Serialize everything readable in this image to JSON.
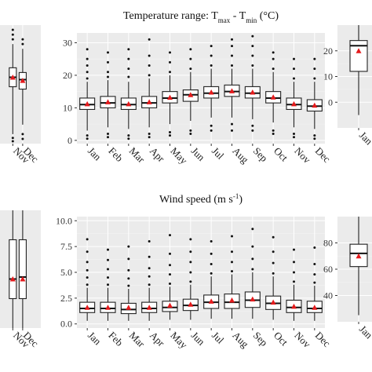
{
  "chart_data": [
    {
      "type": "box",
      "panel": "left-top",
      "title": "",
      "months": [
        "Nov",
        "Dec"
      ],
      "ylim": [
        5,
        30
      ],
      "yticks": [],
      "boxes": [
        {
          "month": "Nov",
          "min": 7,
          "q1": 17,
          "median": 19,
          "q3": 21,
          "max": 26,
          "mean": 19,
          "outliers_low": [
            5.5,
            6.2
          ],
          "outliers_high": [
            27,
            28,
            29
          ]
        },
        {
          "month": "Dec",
          "min": 9,
          "q1": 16.5,
          "median": 18.5,
          "q3": 20,
          "max": 25,
          "mean": 18.3,
          "outliers_low": [
            6,
            7
          ],
          "outliers_high": [
            26,
            27
          ]
        }
      ]
    },
    {
      "type": "box",
      "panel": "center-top",
      "title_main": "Temperature range: T",
      "title_sub1": "max",
      "title_mid": " - T",
      "title_sub2": "min",
      "title_end": " (°C)",
      "months": [
        "Jan",
        "Feb",
        "Mar",
        "Apr",
        "May",
        "Jun",
        "Jul",
        "Aug",
        "Sep",
        "Oct",
        "Nov",
        "Dec"
      ],
      "ylim": [
        -1,
        33
      ],
      "yticks": [
        0,
        10,
        20,
        30
      ],
      "boxes": [
        {
          "month": "Jan",
          "min": 3,
          "q1": 9.5,
          "median": 11,
          "q3": 13,
          "max": 18,
          "mean": 11.2,
          "outliers_low": [
            0.5,
            1.5
          ],
          "outliers_high": [
            19,
            21,
            23,
            25,
            28
          ]
        },
        {
          "month": "Feb",
          "min": 4,
          "q1": 10,
          "median": 11.5,
          "q3": 13.5,
          "max": 18.5,
          "mean": 11.8,
          "outliers_low": [
            1,
            2
          ],
          "outliers_high": [
            19.5,
            21,
            24,
            27
          ]
        },
        {
          "month": "Mar",
          "min": 3.5,
          "q1": 9.5,
          "median": 11,
          "q3": 13,
          "max": 18,
          "mean": 11.2,
          "outliers_low": [
            0.5,
            1.5
          ],
          "outliers_high": [
            19.5,
            22,
            25,
            28
          ]
        },
        {
          "month": "Apr",
          "min": 4,
          "q1": 10,
          "median": 11.5,
          "q3": 13.5,
          "max": 19,
          "mean": 11.8,
          "outliers_low": [
            1,
            2
          ],
          "outliers_high": [
            20,
            23,
            26,
            31
          ]
        },
        {
          "month": "May",
          "min": 5,
          "q1": 11.5,
          "median": 13,
          "q3": 15,
          "max": 20,
          "mean": 13.2,
          "outliers_low": [
            1.5,
            2.5
          ],
          "outliers_high": [
            21,
            24,
            27
          ]
        },
        {
          "month": "Jun",
          "min": 6,
          "q1": 12,
          "median": 14,
          "q3": 15.5,
          "max": 21,
          "mean": 14,
          "outliers_low": [
            2,
            3
          ],
          "outliers_high": [
            22,
            25,
            28
          ]
        },
        {
          "month": "Jul",
          "min": 7,
          "q1": 13,
          "median": 14.5,
          "q3": 16.5,
          "max": 22,
          "mean": 14.8,
          "outliers_low": [
            3,
            4.5
          ],
          "outliers_high": [
            23,
            26,
            29
          ]
        },
        {
          "month": "Aug",
          "min": 7,
          "q1": 13.5,
          "median": 15,
          "q3": 17,
          "max": 22,
          "mean": 15.2,
          "outliers_low": [
            3,
            5
          ],
          "outliers_high": [
            23,
            26,
            29,
            31
          ]
        },
        {
          "month": "Sep",
          "min": 6.5,
          "q1": 13,
          "median": 14.5,
          "q3": 16.5,
          "max": 22,
          "mean": 14.8,
          "outliers_low": [
            3,
            4.5
          ],
          "outliers_high": [
            23,
            26,
            29,
            32
          ]
        },
        {
          "month": "Oct",
          "min": 5.5,
          "q1": 11.5,
          "median": 13,
          "q3": 15,
          "max": 21,
          "mean": 13.3,
          "outliers_low": [
            2,
            3
          ],
          "outliers_high": [
            22,
            25,
            27
          ]
        },
        {
          "month": "Nov",
          "min": 4,
          "q1": 9.5,
          "median": 11,
          "q3": 13,
          "max": 18,
          "mean": 11.2,
          "outliers_low": [
            1,
            2
          ],
          "outliers_high": [
            19,
            22,
            25
          ]
        },
        {
          "month": "Dec",
          "min": 3.5,
          "q1": 9,
          "median": 10.5,
          "q3": 12.5,
          "max": 18,
          "mean": 10.8,
          "outliers_low": [
            0.5,
            1.5
          ],
          "outliers_high": [
            19,
            22,
            25
          ]
        }
      ]
    },
    {
      "type": "box",
      "panel": "right-top",
      "title": "",
      "months": [
        "Jan"
      ],
      "ylim": [
        -10,
        30
      ],
      "yticks": [
        0,
        10,
        20
      ],
      "boxes": [
        {
          "month": "Jan",
          "min": -5,
          "q1": 12,
          "median": 22,
          "q3": 24,
          "max": 30,
          "mean": 20,
          "outliers_low": [],
          "outliers_high": []
        }
      ]
    },
    {
      "type": "box",
      "panel": "left-bottom",
      "title": "",
      "months": [
        "Nov",
        "Dec"
      ],
      "ylim": [
        0,
        12
      ],
      "yticks": [],
      "boxes": [
        {
          "month": "Nov",
          "min": 0,
          "q1": 3,
          "median": 5,
          "q3": 9,
          "max": 12,
          "mean": 5,
          "outliers_low": [],
          "outliers_high": []
        },
        {
          "month": "Dec",
          "min": 0,
          "q1": 3,
          "median": 5.2,
          "q3": 9,
          "max": 12,
          "mean": 5,
          "outliers_low": [],
          "outliers_high": []
        }
      ]
    },
    {
      "type": "box",
      "panel": "center-bottom",
      "title_main": "Wind speed (m s",
      "title_sup": "-1",
      "title_end": ")",
      "months": [
        "Jan",
        "Feb",
        "Mar",
        "Apr",
        "May",
        "Jun",
        "Jul",
        "Aug",
        "Sep",
        "Oct",
        "Nov",
        "Dec"
      ],
      "ylim": [
        -0.4,
        10.4
      ],
      "yticks": [
        0.0,
        2.5,
        5.0,
        7.5,
        10.0
      ],
      "ytick_labels": [
        "0.0",
        "2.5",
        "5.0",
        "7.5",
        "10.0"
      ],
      "boxes": [
        {
          "month": "Jan",
          "min": 0.3,
          "q1": 1.1,
          "median": 1.5,
          "q3": 2.1,
          "max": 3.5,
          "mean": 1.6,
          "outliers_low": [],
          "outliers_high": [
            3.8,
            4.5,
            5.2,
            6,
            7,
            8.2
          ]
        },
        {
          "month": "Feb",
          "min": 0.3,
          "q1": 1.1,
          "median": 1.5,
          "q3": 2.1,
          "max": 3.5,
          "mean": 1.6,
          "outliers_low": [],
          "outliers_high": [
            3.8,
            4.5,
            5.3,
            6.2,
            7.2
          ]
        },
        {
          "month": "Mar",
          "min": 0.3,
          "q1": 1.0,
          "median": 1.4,
          "q3": 2.0,
          "max": 3.4,
          "mean": 1.6,
          "outliers_low": [],
          "outliers_high": [
            3.7,
            4.4,
            5.2,
            6.3,
            7.5
          ]
        },
        {
          "month": "Apr",
          "min": 0.3,
          "q1": 1.1,
          "median": 1.5,
          "q3": 2.1,
          "max": 3.5,
          "mean": 1.6,
          "outliers_low": [],
          "outliers_high": [
            3.8,
            4.6,
            5.4,
            6.5,
            8
          ]
        },
        {
          "month": "May",
          "min": 0.4,
          "q1": 1.2,
          "median": 1.6,
          "q3": 2.2,
          "max": 3.6,
          "mean": 1.8,
          "outliers_low": [],
          "outliers_high": [
            3.9,
            4.8,
            5.7,
            6.8,
            8.6
          ]
        },
        {
          "month": "Jun",
          "min": 0.4,
          "q1": 1.3,
          "median": 1.8,
          "q3": 2.4,
          "max": 3.8,
          "mean": 1.9,
          "outliers_low": [],
          "outliers_high": [
            4.1,
            5,
            6,
            7,
            8.2
          ]
        },
        {
          "month": "Jul",
          "min": 0.5,
          "q1": 1.5,
          "median": 2.1,
          "q3": 2.8,
          "max": 4.6,
          "mean": 2.2,
          "outliers_low": [],
          "outliers_high": [
            4.9,
            5.8,
            6.8,
            8
          ]
        },
        {
          "month": "Aug",
          "min": 0.5,
          "q1": 1.5,
          "median": 2.1,
          "q3": 2.9,
          "max": 4.8,
          "mean": 2.3,
          "outliers_low": [],
          "outliers_high": [
            5.1,
            6,
            7,
            8.5
          ]
        },
        {
          "month": "Sep",
          "min": 0.5,
          "q1": 1.6,
          "median": 2.3,
          "q3": 3.1,
          "max": 5.0,
          "mean": 2.4,
          "outliers_low": [],
          "outliers_high": [
            5.3,
            6.3,
            7.5,
            9.2
          ]
        },
        {
          "month": "Oct",
          "min": 0.4,
          "q1": 1.4,
          "median": 2.0,
          "q3": 2.7,
          "max": 4.6,
          "mean": 2.1,
          "outliers_low": [],
          "outliers_high": [
            4.9,
            5.9,
            7,
            8.4
          ]
        },
        {
          "month": "Nov",
          "min": 0.3,
          "q1": 1.1,
          "median": 1.6,
          "q3": 2.3,
          "max": 3.8,
          "mean": 1.7,
          "outliers_low": [],
          "outliers_high": [
            4.1,
            5,
            6,
            7.2
          ]
        },
        {
          "month": "Dec",
          "min": 0.3,
          "q1": 1.1,
          "median": 1.5,
          "q3": 2.2,
          "max": 3.7,
          "mean": 1.6,
          "outliers_low": [],
          "outliers_high": [
            4,
            4.8,
            5.8,
            7.4
          ]
        }
      ]
    },
    {
      "type": "box",
      "panel": "right-bottom",
      "title": "",
      "months": [
        "Jan"
      ],
      "ylim": [
        20,
        100
      ],
      "yticks": [
        40,
        60,
        80
      ],
      "boxes": [
        {
          "month": "Jan",
          "min": 25,
          "q1": 62,
          "median": 72,
          "q3": 79,
          "max": 100,
          "mean": 70,
          "outliers_low": [],
          "outliers_high": []
        }
      ]
    }
  ]
}
